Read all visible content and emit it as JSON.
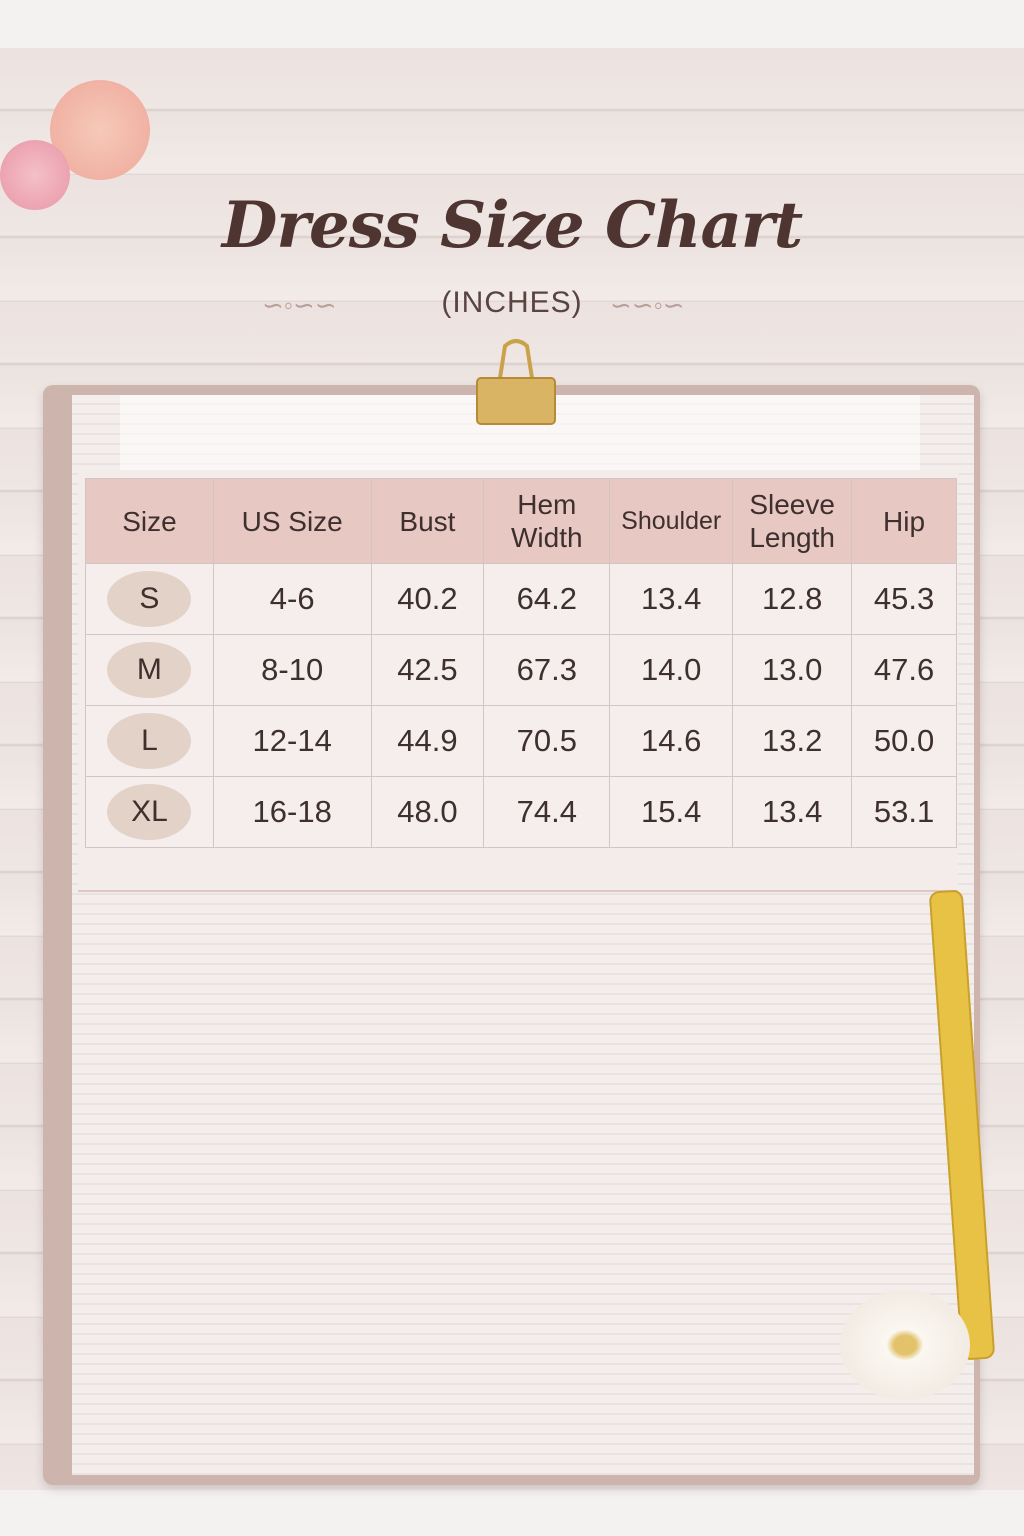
{
  "header": {
    "title": "Dress Size Chart",
    "subtitle": "(INCHES)"
  },
  "table": {
    "columns": [
      "Size",
      "US Size",
      "Bust",
      "Hem Width",
      "Shoulder",
      "Sleeve Length",
      "Hip"
    ],
    "rows": [
      [
        "S",
        "4-6",
        "40.2",
        "64.2",
        "13.4",
        "12.8",
        "45.3"
      ],
      [
        "M",
        "8-10",
        "42.5",
        "67.3",
        "14.0",
        "13.0",
        "47.6"
      ],
      [
        "L",
        "12-14",
        "44.9",
        "70.5",
        "14.6",
        "13.2",
        "50.0"
      ],
      [
        "XL",
        "16-18",
        "48.0",
        "74.4",
        "15.4",
        "13.4",
        "53.1"
      ]
    ]
  },
  "colors": {
    "header_bg": "#e8c8c2",
    "title": "#4e3532",
    "badge": "#e3d2c7",
    "tape_measure": "#e8c244"
  }
}
